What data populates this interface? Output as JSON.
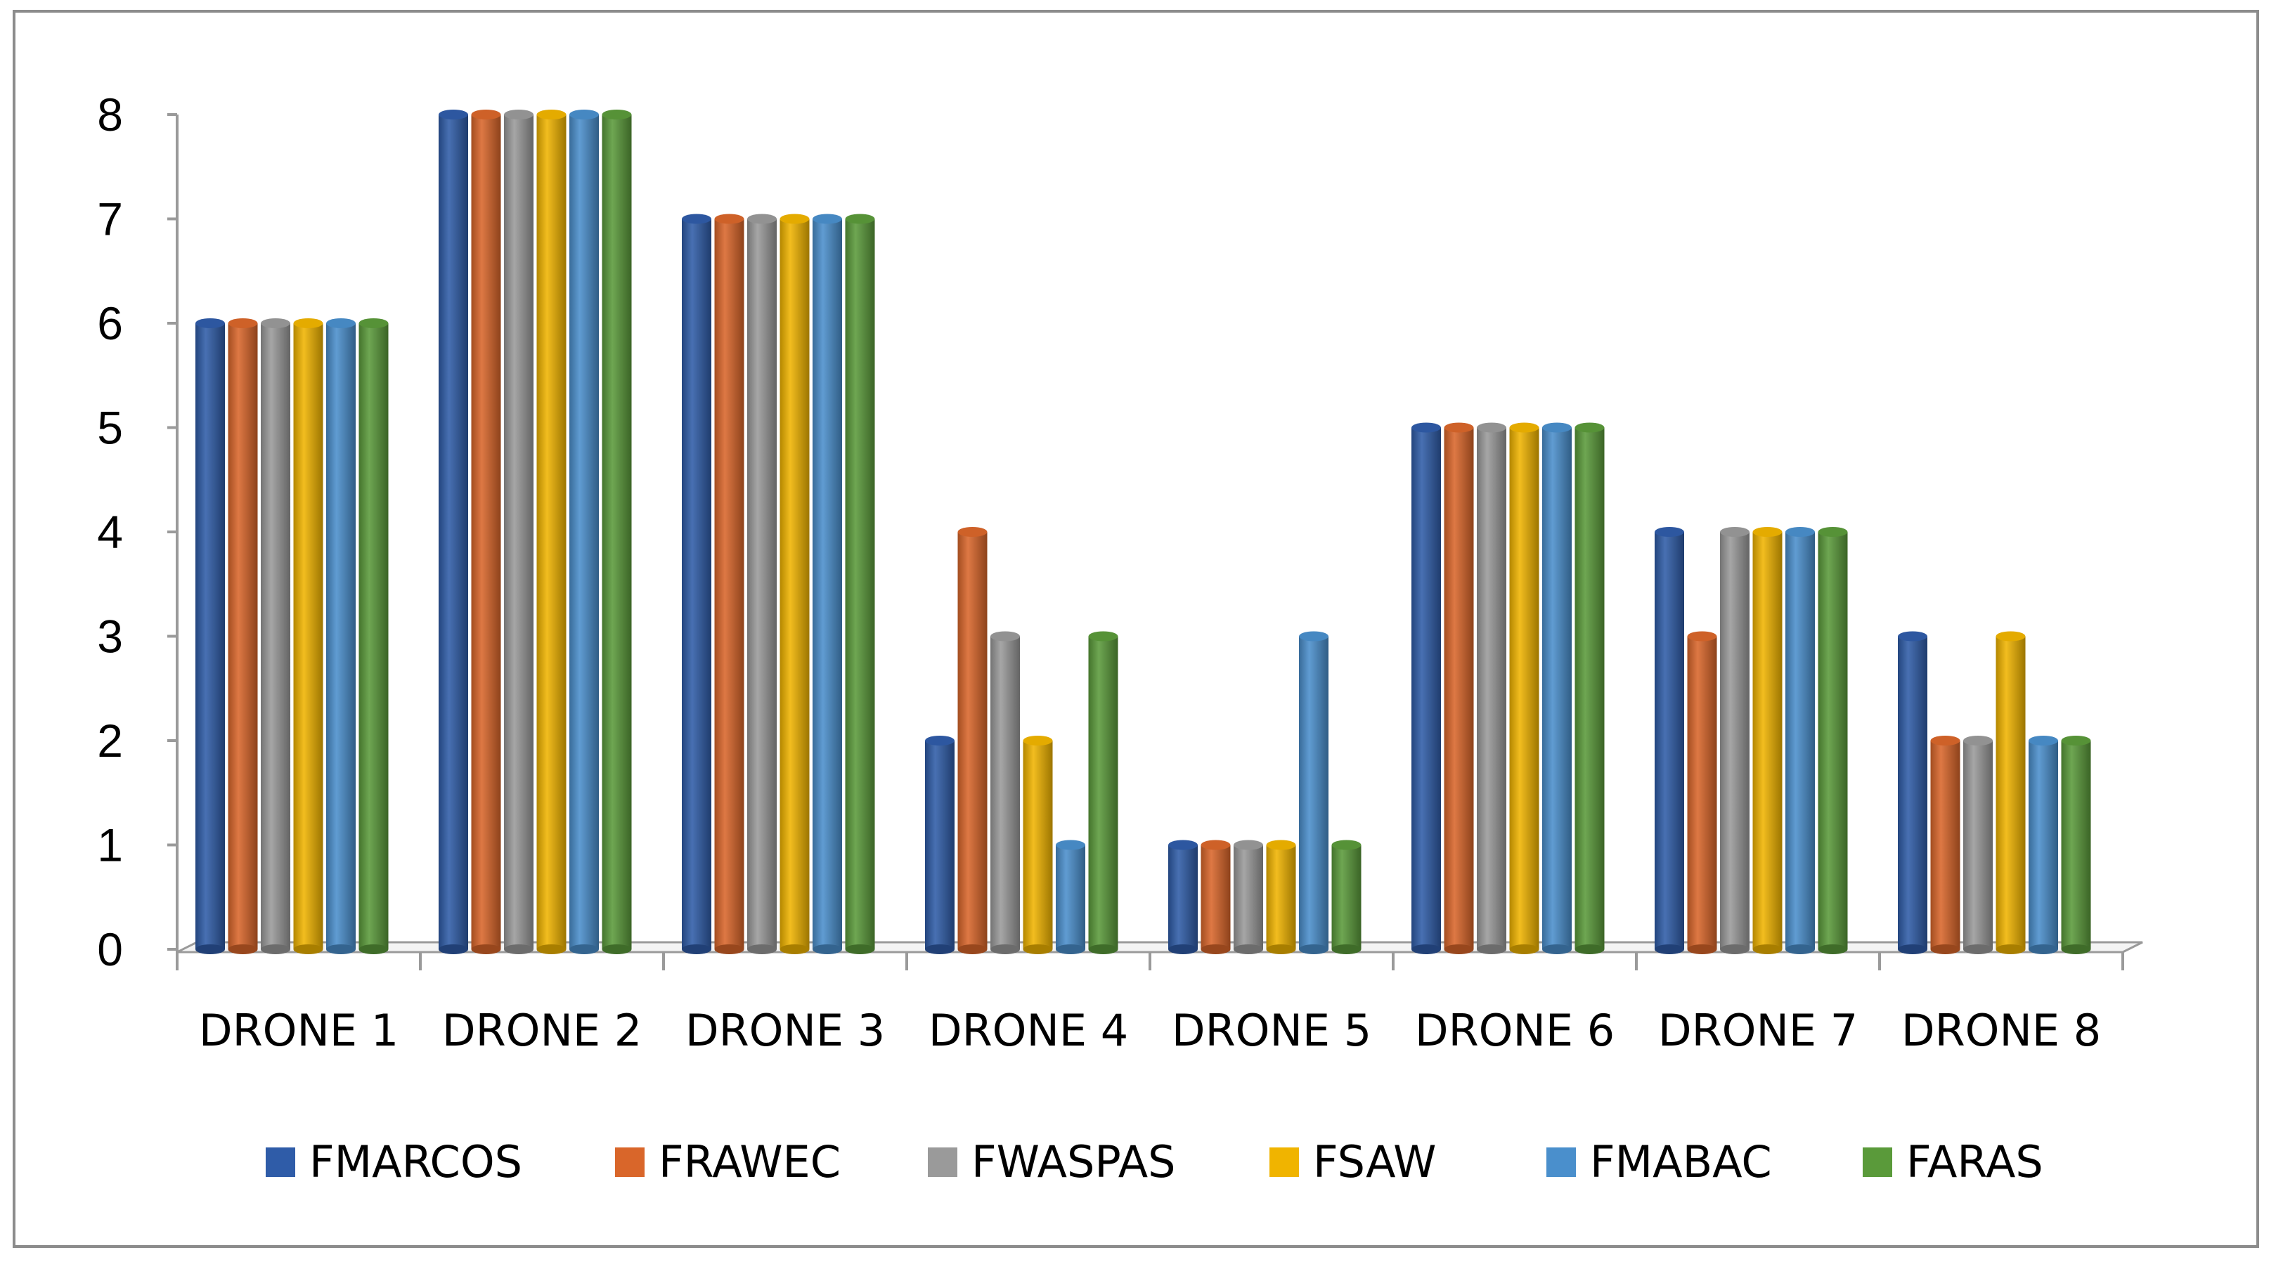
{
  "chart_data": {
    "type": "bar",
    "title": "",
    "xlabel": "",
    "ylabel": "",
    "ylim": [
      0,
      8
    ],
    "yticks": [
      "0",
      "1",
      "2",
      "3",
      "4",
      "5",
      "6",
      "7",
      "8"
    ],
    "categories": [
      "DRONE 1",
      "DRONE 2",
      "DRONE 3",
      "DRONE 4",
      "DRONE 5",
      "DRONE 6",
      "DRONE 7",
      "DRONE 8"
    ],
    "series": [
      {
        "name": "FMARCOS",
        "color": "#2f5ca8",
        "values": [
          6,
          8,
          7,
          2,
          1,
          5,
          4,
          3
        ]
      },
      {
        "name": "FRAWEC",
        "color": "#d9662a",
        "values": [
          6,
          8,
          7,
          4,
          1,
          5,
          3,
          2
        ]
      },
      {
        "name": "FWASPAS",
        "color": "#9a9a9a",
        "values": [
          6,
          8,
          7,
          3,
          1,
          5,
          4,
          2
        ]
      },
      {
        "name": "FSAW",
        "color": "#f0b400",
        "values": [
          6,
          8,
          7,
          2,
          1,
          5,
          4,
          3
        ]
      },
      {
        "name": "FMABAC",
        "color": "#4a8fcc",
        "values": [
          6,
          8,
          7,
          1,
          3,
          5,
          4,
          2
        ]
      },
      {
        "name": "FARAS",
        "color": "#5a9a3a",
        "values": [
          6,
          8,
          7,
          3,
          1,
          5,
          4,
          2
        ]
      }
    ],
    "legend_position": "bottom",
    "grid": false,
    "style": "3d-cylinder"
  }
}
